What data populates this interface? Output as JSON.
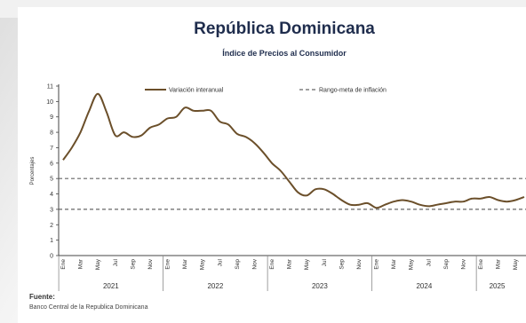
{
  "chart_data": {
    "type": "line",
    "title": "República Dominicana",
    "subtitle": "Índice de Precios al Consumidor",
    "ylabel": "Porcentajes",
    "ylim": [
      0,
      11
    ],
    "yticks": [
      0,
      1,
      2,
      3,
      4,
      5,
      6,
      7,
      8,
      9,
      10,
      11
    ],
    "month_ticks": [
      "Ene",
      "Mar",
      "May",
      "Jul",
      "Sep",
      "Nov"
    ],
    "years": [
      "2021",
      "2022",
      "2023",
      "2024",
      "2025"
    ],
    "legend": {
      "line": "Variación interanual",
      "dashed": "Rango-meta de inflación"
    },
    "series": [
      {
        "name": "Variación interanual",
        "color": "#6b4f2a",
        "values": [
          6.2,
          7.0,
          8.0,
          9.4,
          10.5,
          9.3,
          7.8,
          8.0,
          7.7,
          7.8,
          8.3,
          8.5,
          8.9,
          9.0,
          9.6,
          9.4,
          9.4,
          9.4,
          8.7,
          8.5,
          7.9,
          7.7,
          7.3,
          6.7,
          6.0,
          5.5,
          4.8,
          4.1,
          3.9,
          4.3,
          4.3,
          4.0,
          3.6,
          3.3,
          3.3,
          3.4,
          3.1,
          3.3,
          3.5,
          3.6,
          3.5,
          3.3,
          3.2,
          3.3,
          3.4,
          3.5,
          3.5,
          3.7,
          3.7,
          3.8,
          3.6,
          3.5,
          3.6,
          3.8
        ]
      }
    ],
    "target_band": {
      "name": "Rango-meta de inflación",
      "upper": 5,
      "lower": 3,
      "color": "#666666"
    }
  },
  "source": {
    "label": "Fuente:",
    "text": "Banco Central de la Republica Dominicana"
  }
}
